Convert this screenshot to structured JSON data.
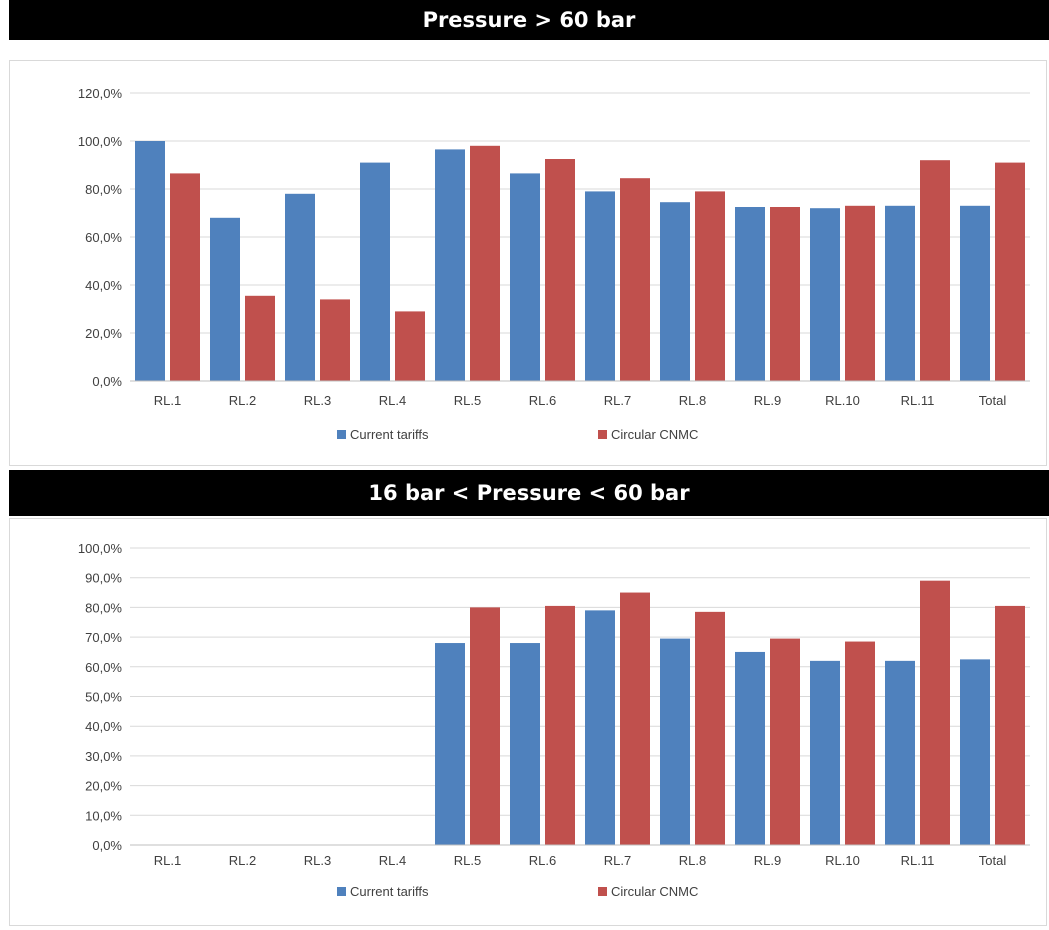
{
  "colors": {
    "current": "#4f81bd",
    "circular": "#c0504d",
    "grid": "#d9d9d9",
    "axis_text": "#404040"
  },
  "legend": {
    "current": "Current tariffs",
    "circular": "Circular CNMC"
  },
  "panels": [
    {
      "title": "Pressure > 60 bar"
    },
    {
      "title": "16 bar < Pressure < 60 bar"
    }
  ],
  "chart_data": [
    {
      "type": "bar",
      "title": "Pressure > 60 bar",
      "categories": [
        "RL.1",
        "RL.2",
        "RL.3",
        "RL.4",
        "RL.5",
        "RL.6",
        "RL.7",
        "RL.8",
        "RL.9",
        "RL.10",
        "RL.11",
        "Total"
      ],
      "series": [
        {
          "name": "Current tariffs",
          "values": [
            100.0,
            68.0,
            78.0,
            91.0,
            96.5,
            86.5,
            79.0,
            74.5,
            72.5,
            72.0,
            73.0,
            73.0
          ]
        },
        {
          "name": "Circular CNMC",
          "values": [
            86.5,
            35.5,
            34.0,
            29.0,
            98.0,
            92.5,
            84.5,
            79.0,
            72.5,
            73.0,
            92.0,
            91.0
          ]
        }
      ],
      "ylim": [
        0,
        120
      ],
      "yticks": [
        "0,0%",
        "20,0%",
        "40,0%",
        "60,0%",
        "80,0%",
        "100,0%",
        "120,0%"
      ],
      "ytick_values": [
        0,
        20,
        40,
        60,
        80,
        100,
        120
      ],
      "grid": true,
      "legend_position": "bottom"
    },
    {
      "type": "bar",
      "title": "16 bar < Pressure < 60 bar",
      "categories": [
        "RL.1",
        "RL.2",
        "RL.3",
        "RL.4",
        "RL.5",
        "RL.6",
        "RL.7",
        "RL.8",
        "RL.9",
        "RL.10",
        "RL.11",
        "Total"
      ],
      "series": [
        {
          "name": "Current tariffs",
          "values": [
            0,
            0,
            0,
            0,
            68.0,
            68.0,
            79.0,
            69.5,
            65.0,
            62.0,
            62.0,
            62.5
          ]
        },
        {
          "name": "Circular CNMC",
          "values": [
            0,
            0,
            0,
            0,
            80.0,
            80.5,
            85.0,
            78.5,
            69.5,
            68.5,
            89.0,
            80.5
          ]
        }
      ],
      "ylim": [
        0,
        100
      ],
      "yticks": [
        "0,0%",
        "10,0%",
        "20,0%",
        "30,0%",
        "40,0%",
        "50,0%",
        "60,0%",
        "70,0%",
        "80,0%",
        "90,0%",
        "100,0%"
      ],
      "ytick_values": [
        0,
        10,
        20,
        30,
        40,
        50,
        60,
        70,
        80,
        90,
        100
      ],
      "grid": true,
      "legend_position": "bottom"
    }
  ]
}
